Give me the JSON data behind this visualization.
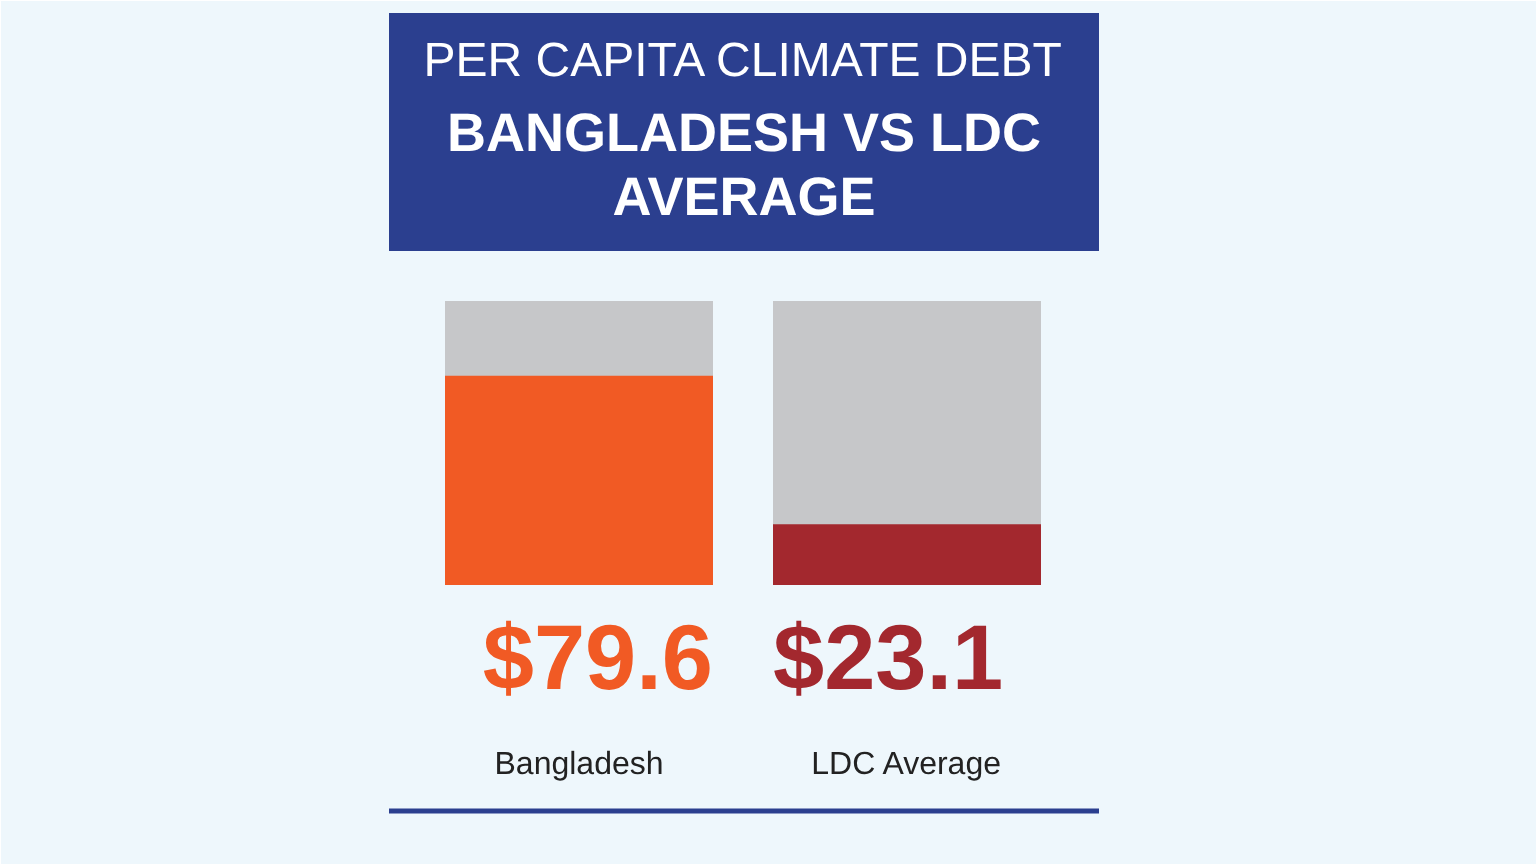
{
  "chart_data": {
    "type": "bar",
    "title": "PER CAPITA CLIMATE DEBT",
    "subtitle": "BANGLADESH VS LDC AVERAGE",
    "categories": [
      "Bangladesh",
      "LDC Average"
    ],
    "values": [
      79.6,
      23.1
    ],
    "colors": [
      "#f15a24",
      "#a3282e"
    ],
    "value_labels": [
      "$79.6",
      "$23.1"
    ],
    "ylim": [
      0,
      108
    ],
    "tick_labels": "x",
    "grid": false
  }
}
